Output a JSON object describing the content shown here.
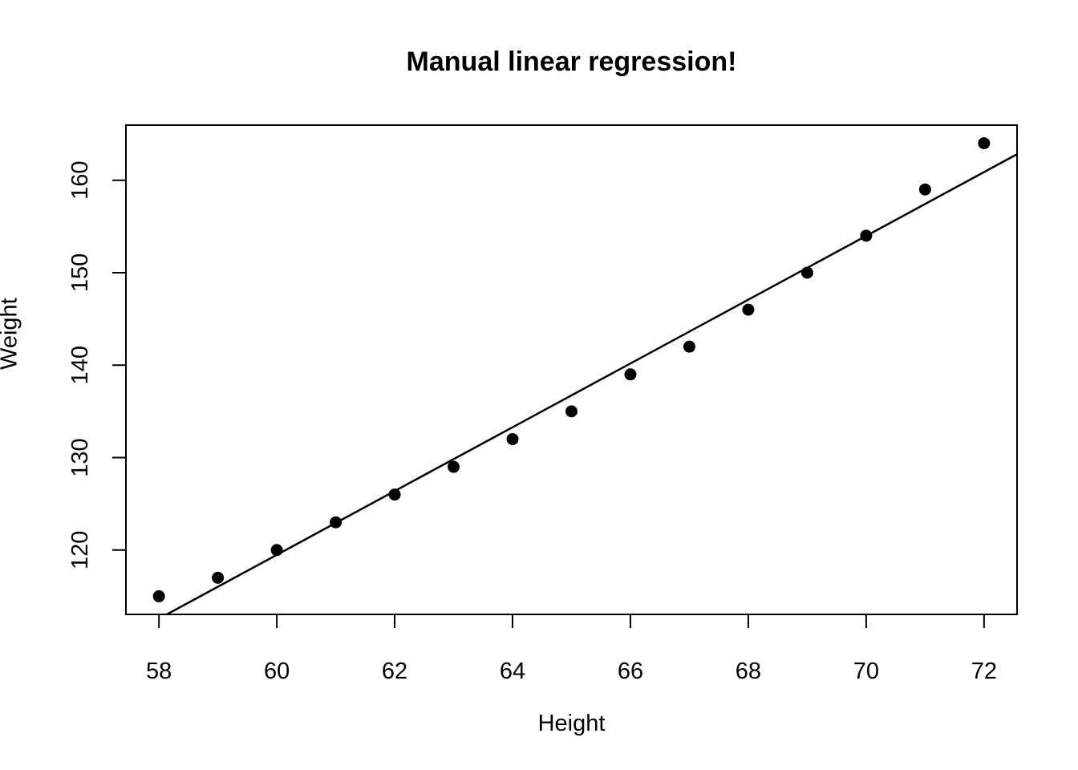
{
  "chart_data": {
    "type": "scatter",
    "title": "Manual linear regression!",
    "xlabel": "Height",
    "ylabel": "Weight",
    "x": [
      58,
      59,
      60,
      61,
      62,
      63,
      64,
      65,
      66,
      67,
      68,
      69,
      70,
      71,
      72
    ],
    "y": [
      115,
      117,
      120,
      123,
      126,
      129,
      132,
      135,
      139,
      142,
      146,
      150,
      154,
      159,
      164
    ],
    "x_ticks": [
      58,
      60,
      62,
      64,
      66,
      68,
      70,
      72
    ],
    "y_ticks": [
      120,
      130,
      140,
      150,
      160
    ],
    "xlim": [
      57.44,
      72.56
    ],
    "ylim": [
      113.04,
      165.96
    ],
    "regression_line": {
      "slope": 3.45,
      "intercept": -87.52
    },
    "grid": false,
    "legend": false,
    "point_color": "#000000",
    "line_color": "#000000",
    "box_color": "#000000",
    "background_color": "#ffffff"
  }
}
